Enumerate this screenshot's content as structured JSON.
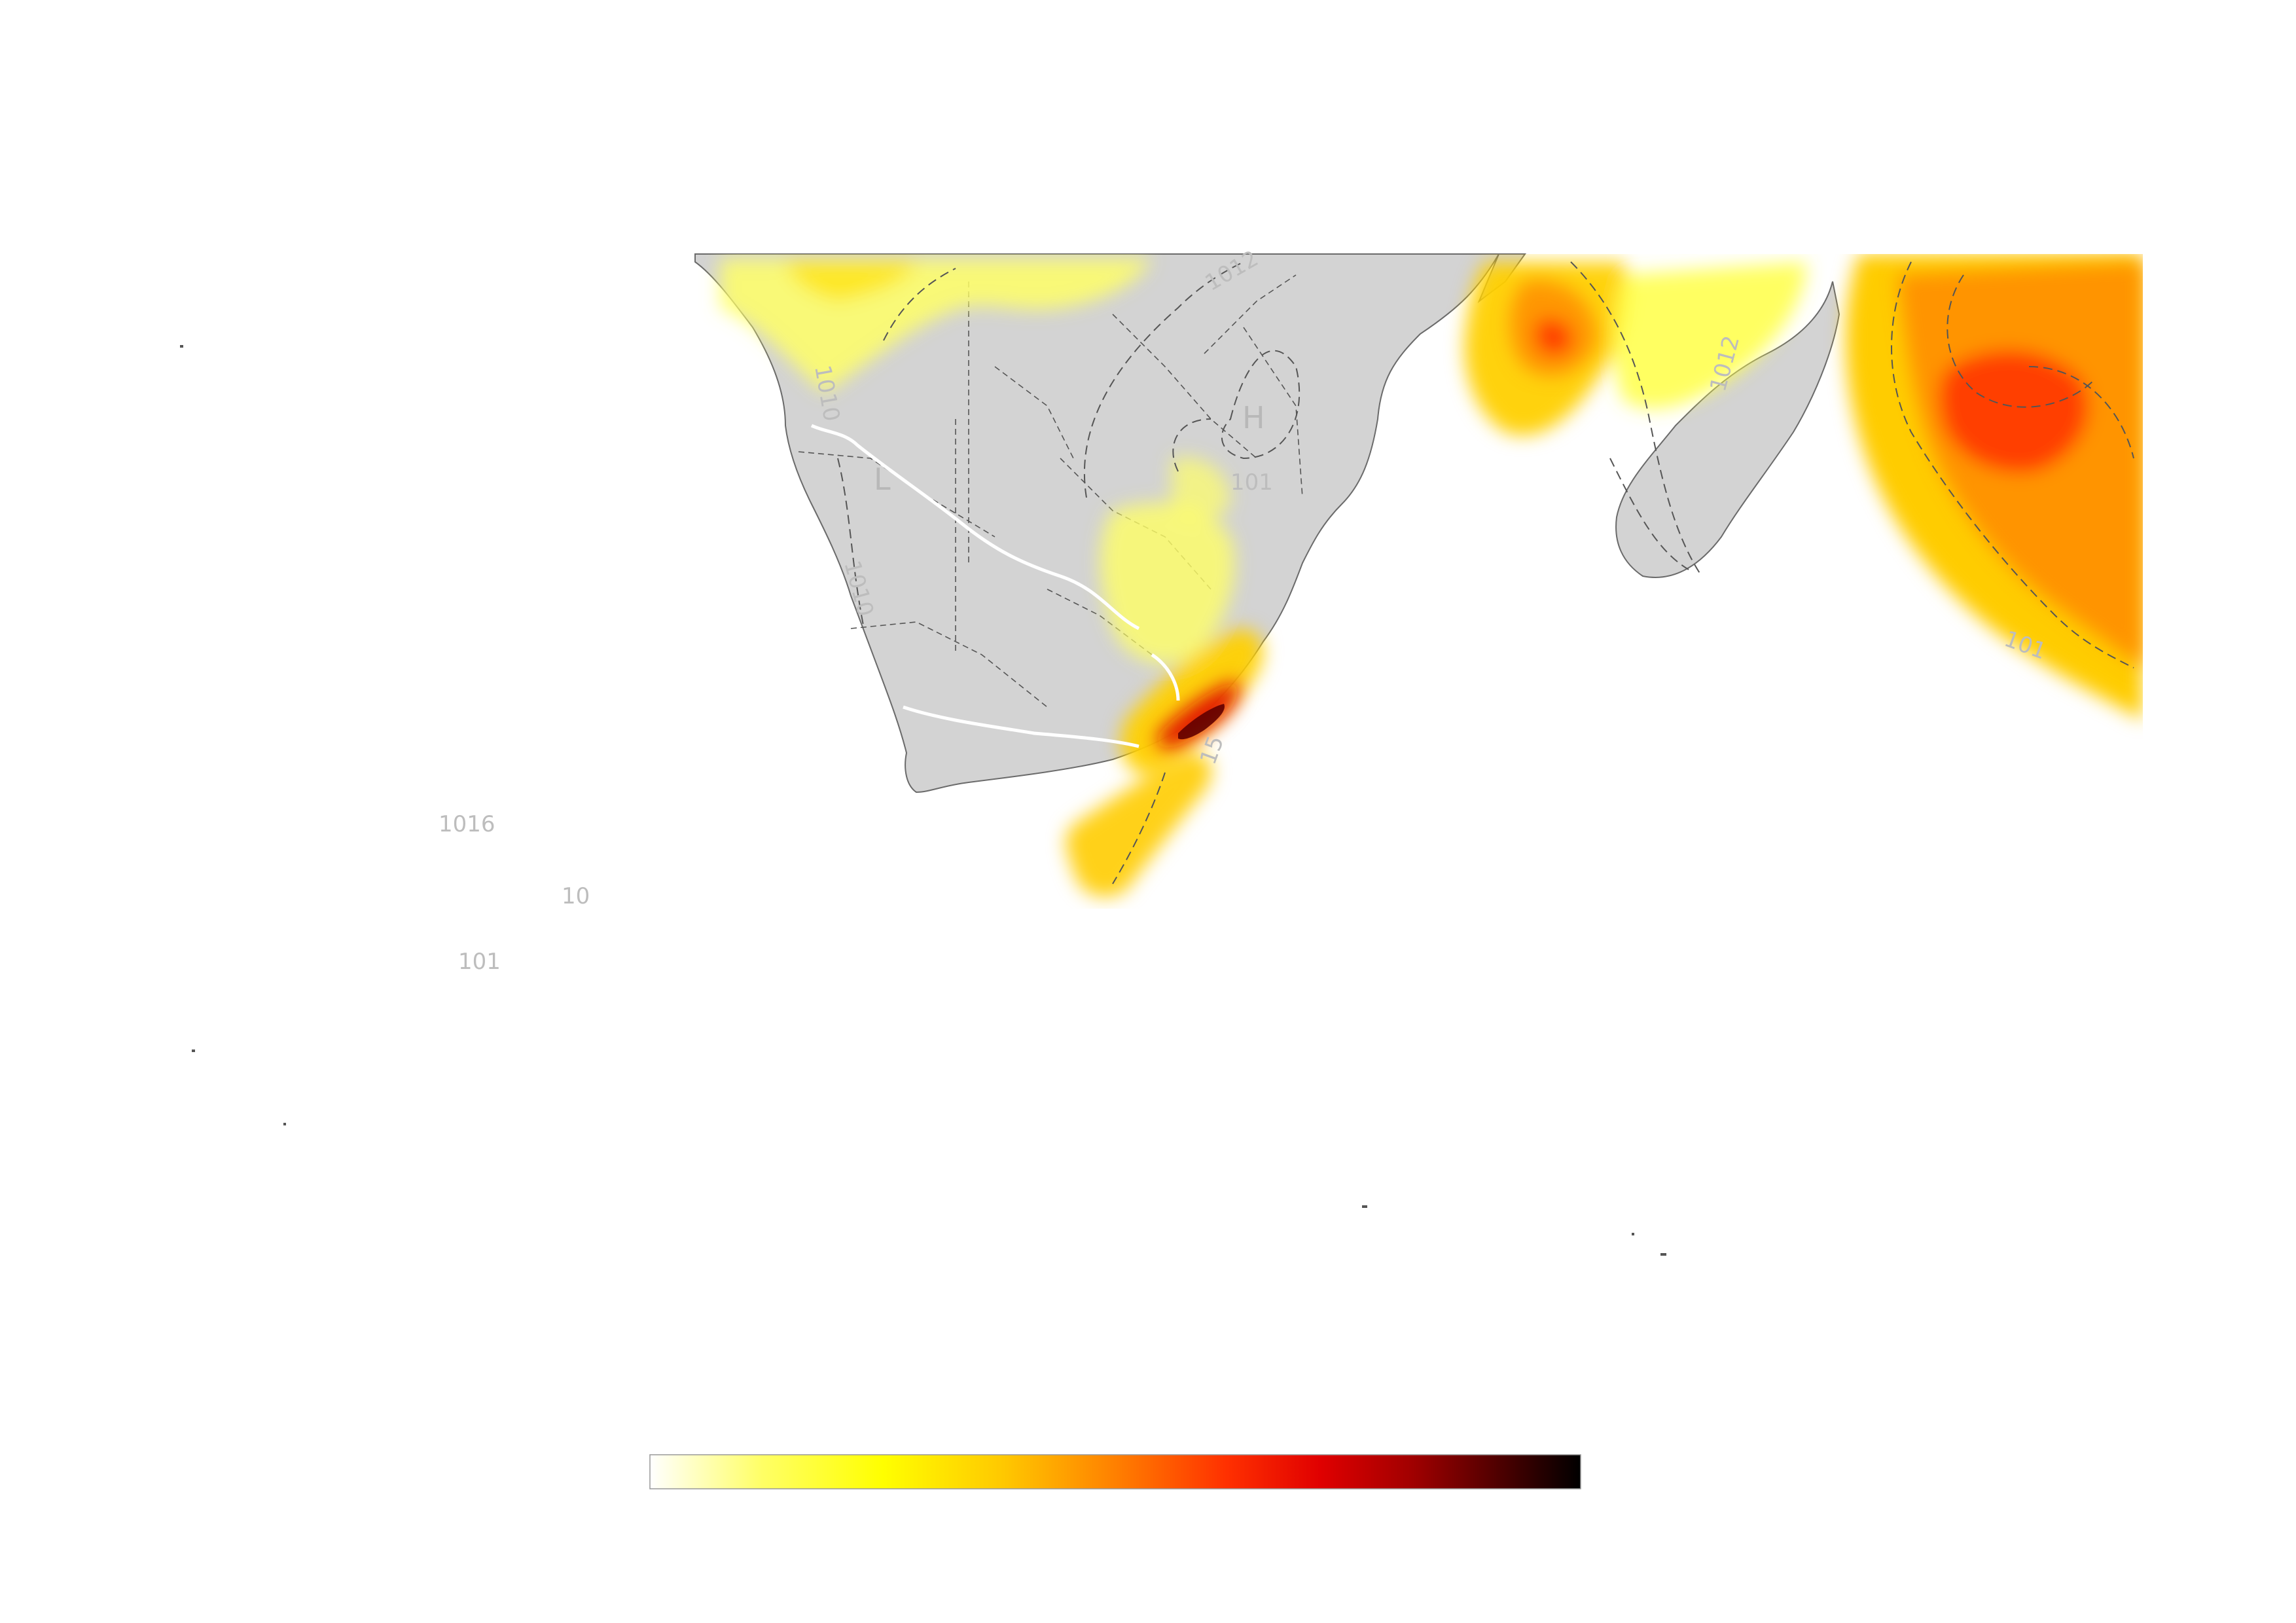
{
  "map": {
    "isobar_labels": [
      {
        "id": "nw-1012",
        "text": "1012"
      },
      {
        "id": "namibia-1010",
        "text": "1010"
      },
      {
        "id": "kalahari-1010",
        "text": "1010"
      },
      {
        "id": "central-101x",
        "text": "101"
      },
      {
        "id": "madagascar-1012",
        "text": "1012"
      },
      {
        "id": "east-101x",
        "text": "101"
      },
      {
        "id": "atlantic-1016",
        "text": "1016"
      },
      {
        "id": "atlantic-10",
        "text": "10"
      },
      {
        "id": "atlantic-101",
        "text": "101"
      },
      {
        "id": "south-coast",
        "text": "15"
      }
    ],
    "pressure_centers": [
      {
        "id": "high",
        "text": "H"
      },
      {
        "id": "low",
        "text": "L"
      }
    ]
  },
  "colorbar": {
    "colors": [
      "#ffffff",
      "#ffff66",
      "#ffff00",
      "#ffc800",
      "#ff8000",
      "#ff3000",
      "#e00000",
      "#a00000",
      "#500000",
      "#000000"
    ]
  }
}
